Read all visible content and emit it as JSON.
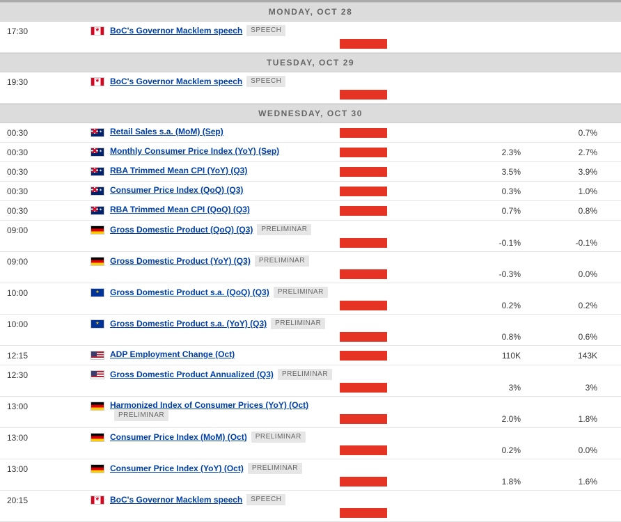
{
  "colors": {
    "vol_bar": "#e63424",
    "link": "#0040a6",
    "header_bg": "#dcdcdc",
    "header_text": "#666666",
    "border": "#e5e5e5",
    "badge_bg": "#e6e6e6",
    "badge_text": "#666666"
  },
  "days": [
    {
      "label": "MONDAY, OCT 28",
      "events": [
        {
          "time": "17:30",
          "flag": "ca",
          "title": "BoC's Governor Macklem speech",
          "badge": "SPEECH",
          "consensus": "",
          "previous": "",
          "barLow": true
        }
      ]
    },
    {
      "label": "TUESDAY, OCT 29",
      "events": [
        {
          "time": "19:30",
          "flag": "ca",
          "title": "BoC's Governor Macklem speech",
          "badge": "SPEECH",
          "consensus": "",
          "previous": "",
          "barLow": true
        }
      ]
    },
    {
      "label": "WEDNESDAY, OCT 30",
      "events": [
        {
          "time": "00:30",
          "flag": "au",
          "title": "Retail Sales s.a. (MoM) (Sep)",
          "badge": "",
          "consensus": "",
          "previous": "0.7%",
          "barLow": false
        },
        {
          "time": "00:30",
          "flag": "au",
          "title": "Monthly Consumer Price Index (YoY) (Sep)",
          "badge": "",
          "consensus": "2.3%",
          "previous": "2.7%",
          "barLow": false
        },
        {
          "time": "00:30",
          "flag": "au",
          "title": "RBA Trimmed Mean CPI (YoY) (Q3)",
          "badge": "",
          "consensus": "3.5%",
          "previous": "3.9%",
          "barLow": false
        },
        {
          "time": "00:30",
          "flag": "au",
          "title": "Consumer Price Index (QoQ) (Q3)",
          "badge": "",
          "consensus": "0.3%",
          "previous": "1.0%",
          "barLow": false
        },
        {
          "time": "00:30",
          "flag": "au",
          "title": "RBA Trimmed Mean CPI (QoQ) (Q3)",
          "badge": "",
          "consensus": "0.7%",
          "previous": "0.8%",
          "barLow": false
        },
        {
          "time": "09:00",
          "flag": "de",
          "title": "Gross Domestic Product (QoQ) (Q3)",
          "badge": "PRELIMINAR",
          "consensus": "-0.1%",
          "previous": "-0.1%",
          "barLow": true
        },
        {
          "time": "09:00",
          "flag": "de",
          "title": "Gross Domestic Product (YoY) (Q3)",
          "badge": "PRELIMINAR",
          "consensus": "-0.3%",
          "previous": "0.0%",
          "barLow": true
        },
        {
          "time": "10:00",
          "flag": "eu",
          "title": "Gross Domestic Product s.a. (QoQ) (Q3)",
          "badge": "PRELIMINAR",
          "consensus": "0.2%",
          "previous": "0.2%",
          "barLow": true
        },
        {
          "time": "10:00",
          "flag": "eu",
          "title": "Gross Domestic Product s.a. (YoY) (Q3)",
          "badge": "PRELIMINAR",
          "consensus": "0.8%",
          "previous": "0.6%",
          "barLow": true
        },
        {
          "time": "12:15",
          "flag": "us",
          "title": "ADP Employment Change (Oct)",
          "badge": "",
          "consensus": "110K",
          "previous": "143K",
          "barLow": false
        },
        {
          "time": "12:30",
          "flag": "us",
          "title": "Gross Domestic Product Annualized (Q3)",
          "badge": "PRELIMINAR",
          "consensus": "3%",
          "previous": "3%",
          "barLow": true
        },
        {
          "time": "13:00",
          "flag": "de",
          "title": "Harmonized Index of Consumer Prices (YoY) (Oct)",
          "badge": "PRELIMINAR",
          "consensus": "2.0%",
          "previous": "1.8%",
          "barLow": true
        },
        {
          "time": "13:00",
          "flag": "de",
          "title": "Consumer Price Index (MoM) (Oct)",
          "badge": "PRELIMINAR",
          "consensus": "0.2%",
          "previous": "0.0%",
          "barLow": true
        },
        {
          "time": "13:00",
          "flag": "de",
          "title": "Consumer Price Index (YoY) (Oct)",
          "badge": "PRELIMINAR",
          "consensus": "1.8%",
          "previous": "1.6%",
          "barLow": true
        },
        {
          "time": "20:15",
          "flag": "ca",
          "title": "BoC's Governor Macklem speech",
          "badge": "SPEECH",
          "consensus": "",
          "previous": "",
          "barLow": true
        }
      ]
    }
  ]
}
